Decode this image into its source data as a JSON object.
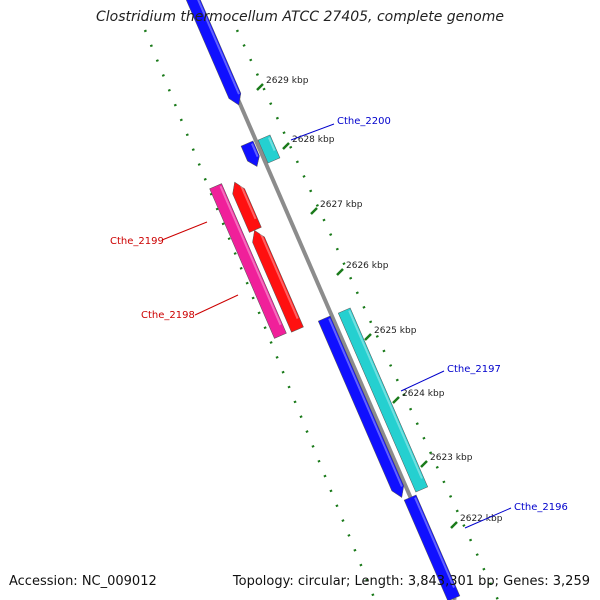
{
  "title": "Clostridium thermocellum ATCC 27405, complete genome",
  "footer": {
    "accession": "Accession: NC_009012",
    "summary": "Topology: circular; Length: 3,843,301 bp; Genes: 3,259"
  },
  "colors": {
    "backbone": "#8c8c8c",
    "ticks": "#1a7a1a",
    "forward_gene": "#1010ff",
    "forward_gene_alt": "#25d0d0",
    "reverse_gene": "#ff1010",
    "reverse_gene_alt": "#f0209a",
    "label_forward": "#0000cc",
    "label_reverse": "#cc0000"
  },
  "tick_labels": [
    "2629 kbp",
    "2628 kbp",
    "2627 kbp",
    "2626 kbp",
    "2625 kbp",
    "2624 kbp",
    "2623 kbp",
    "2622 kbp"
  ],
  "gene_labels": [
    {
      "text": "Cthe_2200",
      "strand": "forward"
    },
    {
      "text": "Cthe_2199",
      "strand": "reverse"
    },
    {
      "text": "Cthe_2198",
      "strand": "reverse"
    },
    {
      "text": "Cthe_2197",
      "strand": "forward"
    },
    {
      "text": "Cthe_2196",
      "strand": "forward"
    }
  ]
}
